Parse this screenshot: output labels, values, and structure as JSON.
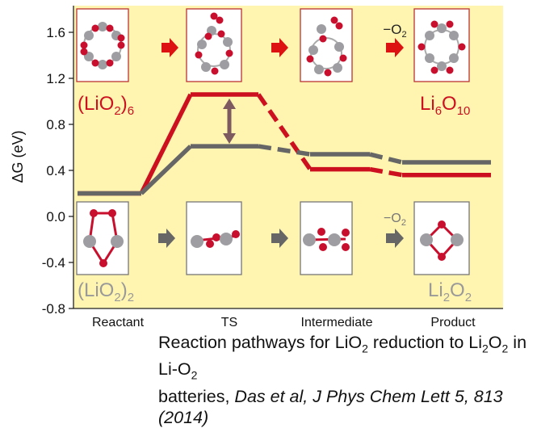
{
  "chart_data": {
    "type": "line",
    "ylabel": "ΔG (eV)",
    "ylim": [
      -0.8,
      1.8
    ],
    "yticks": [
      "1.6",
      "1.2",
      "0.8",
      "0.4",
      "0.0",
      "-0.4",
      "-0.8"
    ],
    "categories": [
      "Reactant",
      "TS",
      "Intermediate",
      "Product"
    ],
    "grid": false,
    "background": "#fff4b0",
    "series": [
      {
        "name": "(LiO2)6",
        "color": "#cc1020",
        "values": [
          0.2,
          1.06,
          0.41,
          0.36
        ]
      },
      {
        "name": "(LiO2)2",
        "color": "#666666",
        "values": [
          0.2,
          0.61,
          0.54,
          0.47
        ]
      }
    ],
    "annotations": {
      "top_label_left": "(LiO2)6",
      "top_label_right": "Li6O10",
      "bottom_label_left": "(LiO2)2",
      "bottom_label_right": "Li2O2",
      "top_loss": "−O2",
      "bottom_loss": "−O2"
    }
  },
  "caption": {
    "line1": "Reaction pathways for LiO2 reduction to Li2O2 in Li-O2",
    "line2": "batteries,",
    "reference": "Das et al, J Phys Chem Lett 5, 813 (2014)"
  }
}
